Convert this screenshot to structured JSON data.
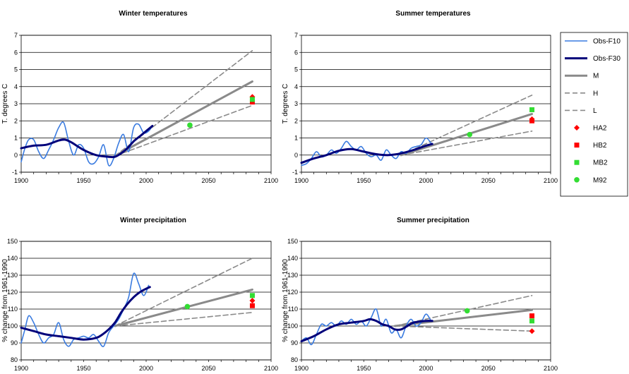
{
  "chart_data": [
    {
      "type": "line",
      "title": "Winter temperatures",
      "ylabel": "T.   degrees C",
      "xlim": [
        1900,
        2100
      ],
      "ylim": [
        -1,
        7
      ],
      "xticks": [
        1900,
        1950,
        2000,
        2050,
        2100
      ],
      "yticks": [
        -1,
        0,
        1,
        2,
        3,
        4,
        5,
        6,
        7
      ],
      "series": [
        {
          "name": "Obs-F10",
          "x": [
            1900,
            1903,
            1906,
            1910,
            1914,
            1918,
            1922,
            1926,
            1930,
            1934,
            1938,
            1942,
            1946,
            1950,
            1954,
            1958,
            1962,
            1966,
            1970,
            1974,
            1978,
            1982,
            1986,
            1990,
            1994,
            1998,
            2002,
            2005
          ],
          "y": [
            -0.4,
            0.4,
            0.9,
            0.9,
            0.2,
            -0.2,
            0.3,
            0.9,
            1.6,
            1.9,
            0.8,
            0.0,
            0.6,
            0.4,
            -0.4,
            -0.5,
            -0.1,
            0.6,
            -0.6,
            -0.2,
            0.7,
            1.2,
            0.2,
            1.6,
            1.8,
            1.3,
            1.4,
            1.7
          ]
        },
        {
          "name": "Obs-F30",
          "x": [
            1900,
            1910,
            1920,
            1930,
            1935,
            1940,
            1950,
            1960,
            1970,
            1975,
            1980,
            1985,
            1990,
            1995,
            2000,
            2005
          ],
          "y": [
            0.4,
            0.55,
            0.6,
            0.85,
            0.9,
            0.75,
            0.3,
            0.0,
            -0.1,
            -0.1,
            0.1,
            0.4,
            0.8,
            1.1,
            1.4,
            1.7
          ]
        },
        {
          "name": "M",
          "x": [
            1975,
            2085
          ],
          "y": [
            -0.05,
            4.3
          ]
        },
        {
          "name": "H",
          "x": [
            1975,
            2085
          ],
          "y": [
            -0.05,
            6.1
          ]
        },
        {
          "name": "L",
          "x": [
            1975,
            2085
          ],
          "y": [
            -0.05,
            2.9
          ]
        },
        {
          "name": "HA2",
          "x": [
            2085
          ],
          "y": [
            3.4
          ]
        },
        {
          "name": "HB2",
          "x": [
            2085
          ],
          "y": [
            3.1
          ]
        },
        {
          "name": "MB2",
          "x": [
            2085
          ],
          "y": [
            3.25
          ]
        },
        {
          "name": "M92",
          "x": [
            2035
          ],
          "y": [
            1.75
          ]
        }
      ]
    },
    {
      "type": "line",
      "title": "Summer temperatures",
      "ylabel": "T.   degrees C",
      "xlim": [
        1900,
        2100
      ],
      "ylim": [
        -1,
        7
      ],
      "xticks": [
        1900,
        1950,
        2000,
        2050,
        2100
      ],
      "yticks": [
        -1,
        0,
        1,
        2,
        3,
        4,
        5,
        6,
        7
      ],
      "series": [
        {
          "name": "Obs-F10",
          "x": [
            1900,
            1904,
            1908,
            1912,
            1916,
            1920,
            1924,
            1928,
            1932,
            1936,
            1940,
            1944,
            1948,
            1952,
            1956,
            1960,
            1964,
            1968,
            1972,
            1976,
            1980,
            1984,
            1988,
            1992,
            1996,
            2000,
            2004
          ],
          "y": [
            -0.6,
            -0.5,
            -0.2,
            0.2,
            -0.1,
            0.0,
            0.3,
            0.1,
            0.4,
            0.8,
            0.5,
            0.3,
            0.5,
            0.1,
            -0.1,
            0.0,
            -0.3,
            0.3,
            0.0,
            -0.2,
            0.2,
            0.1,
            0.4,
            0.5,
            0.6,
            1.0,
            0.7
          ]
        },
        {
          "name": "Obs-F30",
          "x": [
            1900,
            1910,
            1920,
            1930,
            1940,
            1950,
            1960,
            1970,
            1980,
            1990,
            2000,
            2005
          ],
          "y": [
            -0.45,
            -0.2,
            0.0,
            0.25,
            0.35,
            0.2,
            0.05,
            0.0,
            0.1,
            0.3,
            0.55,
            0.65
          ]
        },
        {
          "name": "M",
          "x": [
            1980,
            2085
          ],
          "y": [
            0.0,
            2.4
          ]
        },
        {
          "name": "H",
          "x": [
            1980,
            2085
          ],
          "y": [
            0.0,
            3.5
          ]
        },
        {
          "name": "L",
          "x": [
            1980,
            2085
          ],
          "y": [
            0.0,
            1.4
          ]
        },
        {
          "name": "HA2",
          "x": [
            2085
          ],
          "y": [
            2.1
          ]
        },
        {
          "name": "HB2",
          "x": [
            2085
          ],
          "y": [
            2.0
          ]
        },
        {
          "name": "MB2",
          "x": [
            2085
          ],
          "y": [
            2.65
          ]
        },
        {
          "name": "M92",
          "x": [
            2035
          ],
          "y": [
            1.2
          ]
        }
      ]
    },
    {
      "type": "line",
      "title": "Winter precipitation",
      "ylabel": "% change from 1961-1990",
      "xlim": [
        1900,
        2100
      ],
      "ylim": [
        80,
        150
      ],
      "xticks": [
        1900,
        1950,
        2000,
        2050,
        2100
      ],
      "yticks": [
        80,
        90,
        100,
        110,
        120,
        130,
        140,
        150
      ],
      "series": [
        {
          "name": "Obs-F10",
          "x": [
            1900,
            1903,
            1906,
            1910,
            1914,
            1918,
            1922,
            1926,
            1930,
            1934,
            1938,
            1942,
            1946,
            1950,
            1954,
            1958,
            1962,
            1966,
            1970,
            1974,
            1978,
            1982,
            1986,
            1990,
            1994,
            1998,
            2002
          ],
          "y": [
            90,
            98,
            106,
            102,
            95,
            90,
            93,
            95,
            102,
            92,
            88,
            92,
            93,
            94,
            93,
            95,
            91,
            88,
            96,
            100,
            104,
            110,
            117,
            131,
            125,
            118,
            124
          ]
        },
        {
          "name": "Obs-F30",
          "x": [
            1900,
            1910,
            1920,
            1930,
            1940,
            1950,
            1960,
            1965,
            1970,
            1975,
            1980,
            1985,
            1990,
            1995,
            2000,
            2003
          ],
          "y": [
            99,
            97,
            95,
            94,
            93,
            92,
            93,
            95,
            98,
            102,
            108,
            113,
            117,
            120,
            122,
            123
          ]
        },
        {
          "name": "M",
          "x": [
            1975,
            2085
          ],
          "y": [
            100,
            121.5
          ]
        },
        {
          "name": "H",
          "x": [
            1975,
            2085
          ],
          "y": [
            100,
            140
          ]
        },
        {
          "name": "L",
          "x": [
            1975,
            2085
          ],
          "y": [
            100,
            108
          ]
        },
        {
          "name": "HA2",
          "x": [
            2085
          ],
          "y": [
            115
          ]
        },
        {
          "name": "HB2",
          "x": [
            2085
          ],
          "y": [
            112
          ]
        },
        {
          "name": "MB2",
          "x": [
            2085
          ],
          "y": [
            118
          ]
        },
        {
          "name": "M92",
          "x": [
            2033
          ],
          "y": [
            111.5
          ]
        }
      ]
    },
    {
      "type": "line",
      "title": "Summer precipitation",
      "ylabel": "% change from 1961-1990",
      "xlim": [
        1900,
        2100
      ],
      "ylim": [
        80,
        150
      ],
      "xticks": [
        1900,
        1950,
        2000,
        2050,
        2100
      ],
      "yticks": [
        80,
        90,
        100,
        110,
        120,
        130,
        140,
        150
      ],
      "series": [
        {
          "name": "Obs-F10",
          "x": [
            1900,
            1904,
            1908,
            1912,
            1916,
            1920,
            1924,
            1928,
            1932,
            1936,
            1940,
            1944,
            1948,
            1952,
            1956,
            1960,
            1964,
            1968,
            1972,
            1976,
            1980,
            1984,
            1988,
            1992,
            1996,
            2000,
            2004
          ],
          "y": [
            91,
            93,
            89,
            95,
            101,
            100,
            102,
            100,
            103,
            101,
            104,
            101,
            103,
            100,
            105,
            110,
            100,
            104,
            96,
            98,
            93,
            100,
            104,
            100,
            102,
            107,
            103
          ]
        },
        {
          "name": "Obs-F30",
          "x": [
            1900,
            1910,
            1920,
            1930,
            1940,
            1950,
            1955,
            1960,
            1965,
            1970,
            1975,
            1980,
            1985,
            1990,
            2000,
            2005
          ],
          "y": [
            91,
            94,
            98,
            101,
            102,
            103,
            104,
            103,
            101,
            100,
            98,
            98,
            100,
            102,
            103,
            103
          ]
        },
        {
          "name": "M",
          "x": [
            1975,
            2085
          ],
          "y": [
            100,
            109.5
          ]
        },
        {
          "name": "H",
          "x": [
            1975,
            2085
          ],
          "y": [
            100,
            118
          ]
        },
        {
          "name": "L",
          "x": [
            1975,
            2085
          ],
          "y": [
            100,
            97
          ]
        },
        {
          "name": "HA2",
          "x": [
            2085
          ],
          "y": [
            97
          ]
        },
        {
          "name": "HB2",
          "x": [
            2085
          ],
          "y": [
            106
          ]
        },
        {
          "name": "MB2",
          "x": [
            2085
          ],
          "y": [
            103
          ]
        },
        {
          "name": "M92",
          "x": [
            2033
          ],
          "y": [
            109
          ]
        }
      ]
    }
  ],
  "legend": {
    "placement": "right",
    "items": [
      {
        "label": "Obs-F10",
        "kind": "line",
        "color": "#3a7be0",
        "width": 1.6,
        "dash": ""
      },
      {
        "label": "Obs-F30",
        "kind": "line",
        "color": "#00007a",
        "width": 3,
        "dash": ""
      },
      {
        "label": "M",
        "kind": "line",
        "color": "#8a8a8a",
        "width": 3,
        "dash": ""
      },
      {
        "label": "H",
        "kind": "line",
        "color": "#8a8a8a",
        "width": 1.6,
        "dash": "7,4"
      },
      {
        "label": "L",
        "kind": "line",
        "color": "#8a8a8a",
        "width": 1.6,
        "dash": "7,4"
      },
      {
        "label": "HA2",
        "kind": "diamond",
        "color": "#ff0000"
      },
      {
        "label": "HB2",
        "kind": "square",
        "color": "#ff0000"
      },
      {
        "label": "MB2",
        "kind": "square",
        "color": "#33dd33"
      },
      {
        "label": "M92",
        "kind": "circle",
        "color": "#33dd33"
      }
    ]
  },
  "colors": {
    "obs_f10": "#3a7be0",
    "obs_f30": "#00007a",
    "scenario_gray": "#8a8a8a",
    "red": "#ff0000",
    "green": "#33dd33"
  }
}
